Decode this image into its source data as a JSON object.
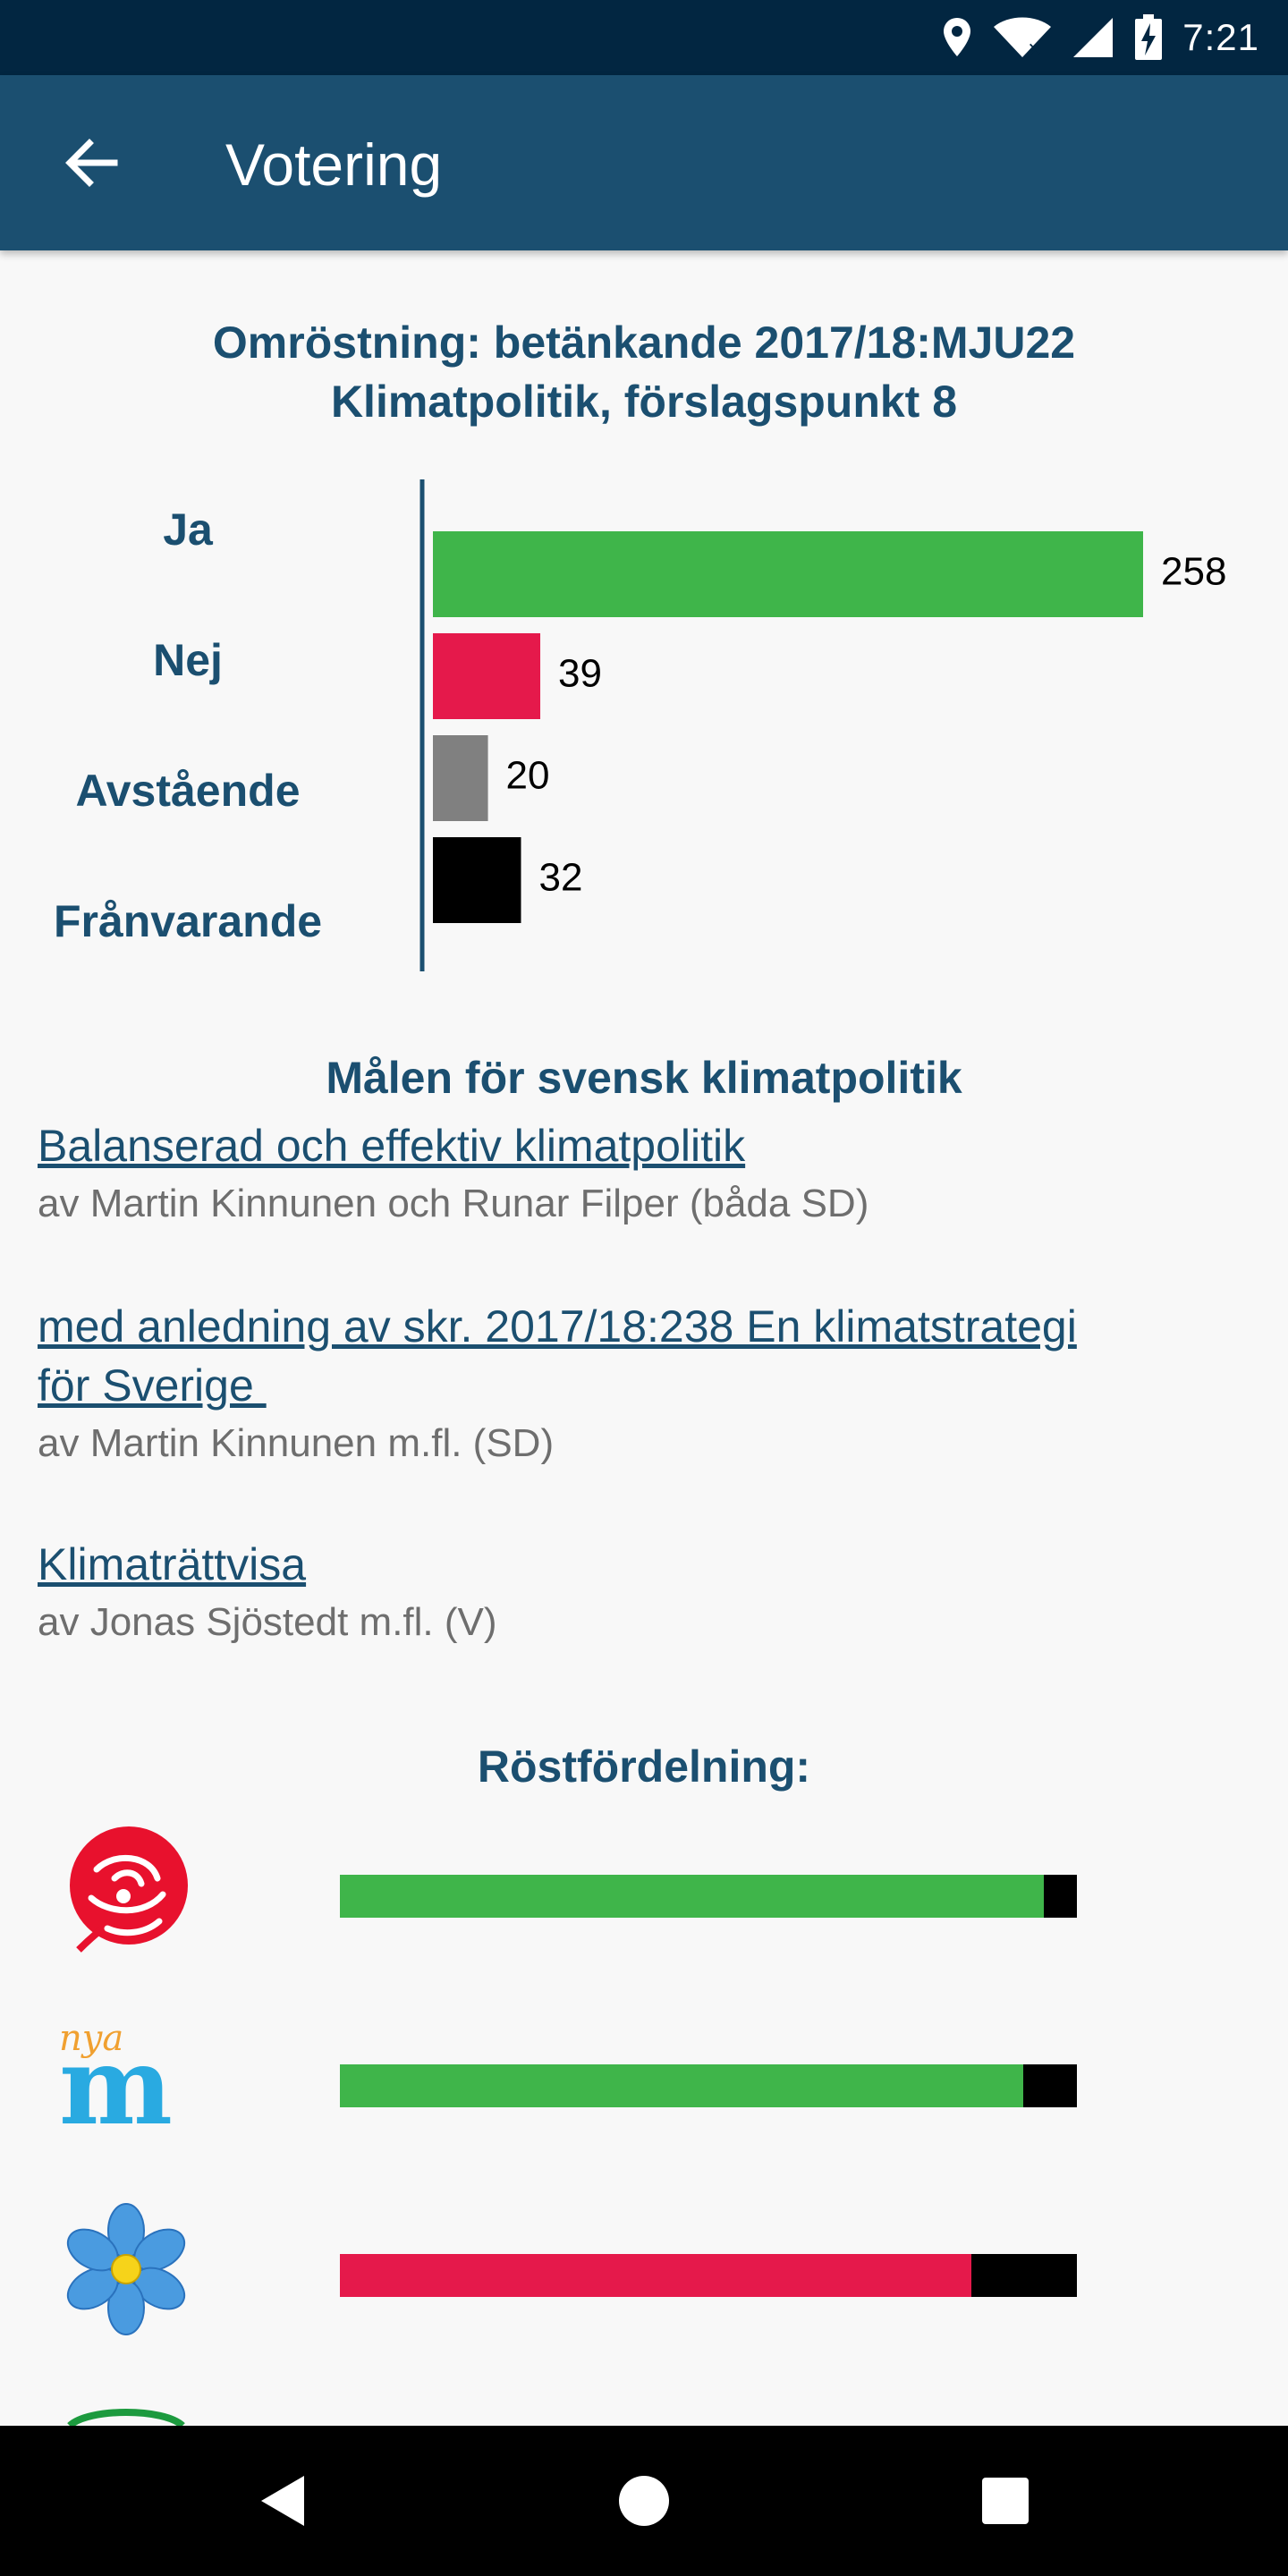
{
  "status_bar": {
    "time": "7:21"
  },
  "app_bar": {
    "title": "Votering"
  },
  "vote": {
    "title_line1": "Omröstning: betänkande 2017/18:MJU22",
    "title_line2": "Klimatpolitik, förslagspunkt 8"
  },
  "chart_data": {
    "type": "bar",
    "orientation": "horizontal",
    "categories": [
      "Ja",
      "Nej",
      "Avstående",
      "Frånvarande"
    ],
    "values": [
      258,
      39,
      20,
      32
    ],
    "colors": [
      "#3fb54a",
      "#e5194b",
      "#808080",
      "#000000"
    ],
    "title": "",
    "data_labels": true
  },
  "motions": {
    "heading": "Målen för svensk klimatpolitik",
    "items": [
      {
        "link_text": "Balanserad och effektiv klimatpolitik",
        "author": "av Martin Kinnunen och Runar Filper (båda SD)"
      },
      {
        "link_line1": "med anledning av skr. 2017/18:238 En klimatstrategi",
        "link_line2": "för Sverige ",
        "author": "av Martin Kinnunen m.fl. (SD)"
      },
      {
        "link_text": "Klimaträttvisa",
        "author": "av Jonas Sjöstedt m.fl. (V)"
      }
    ]
  },
  "distribution": {
    "heading": "Röstfördelning:",
    "parties": [
      {
        "logo": "rose-logo-icon",
        "segments": [
          {
            "color": "#3fb54a",
            "fraction": 0.955
          },
          {
            "color": "#000000",
            "fraction": 0.045
          }
        ]
      },
      {
        "logo": "nya-m-logo-icon",
        "segments": [
          {
            "color": "#3fb54a",
            "fraction": 0.927
          },
          {
            "color": "#000000",
            "fraction": 0.073
          }
        ]
      },
      {
        "logo": "flower-logo-icon",
        "segments": [
          {
            "color": "#e5194b",
            "fraction": 0.857
          },
          {
            "color": "#000000",
            "fraction": 0.143
          }
        ]
      }
    ],
    "extra_logo": "green-party-logo-icon"
  },
  "m_logo_text": {
    "small": "nya",
    "big": "m"
  }
}
